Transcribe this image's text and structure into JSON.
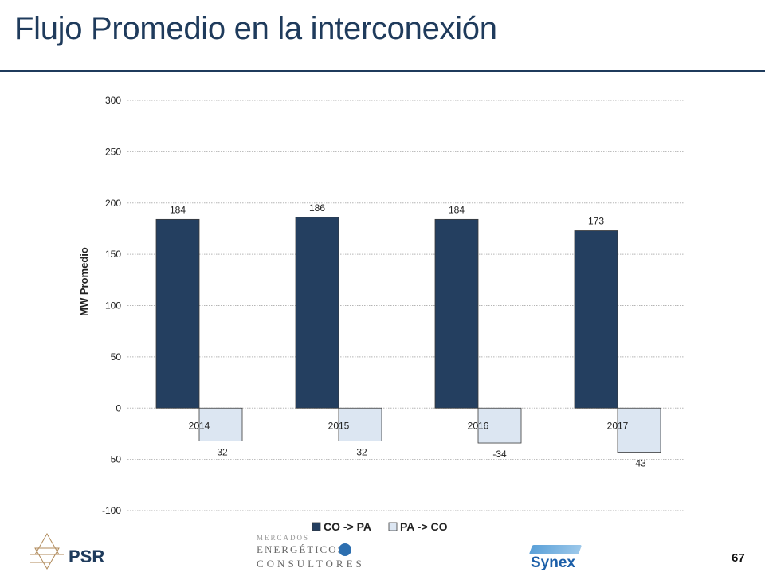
{
  "slide": {
    "title": "Flujo Promedio en la interconexión",
    "page_number": "67"
  },
  "logos": {
    "psr": "PSR",
    "mec_line1": "MERCADOS",
    "mec_line2": "ENERGÉTICOS",
    "mec_line3": "CONSULTORES",
    "synex": "Synex"
  },
  "colors": {
    "title": "#1f3b5c",
    "series_1": "#243f60",
    "series_2": "#dce6f2",
    "bar_outline": "#3a3a3a"
  },
  "chart_data": {
    "type": "bar",
    "categories": [
      "2014",
      "2015",
      "2016",
      "2017"
    ],
    "series": [
      {
        "name": "CO -> PA",
        "values": [
          184,
          186,
          184,
          173
        ],
        "labels": [
          "184",
          "186",
          "184",
          "173"
        ]
      },
      {
        "name": "PA -> CO",
        "values": [
          -32,
          -32,
          -34,
          -43
        ],
        "labels": [
          "-32",
          "-32",
          "-34",
          "-43"
        ]
      }
    ],
    "ylabel": "MW Promedio",
    "xlabel": "",
    "ylim": [
      -100,
      300
    ],
    "yticks": [
      300,
      250,
      200,
      150,
      100,
      50,
      0,
      -50,
      -100
    ],
    "grid": true,
    "legend_position": "bottom"
  }
}
